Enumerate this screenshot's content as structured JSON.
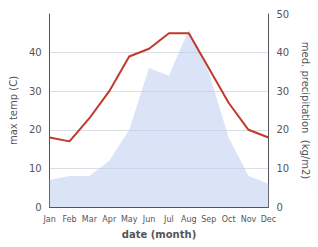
{
  "chart_data": {
    "type": "line",
    "xlabel": "date (month)",
    "ylabel": "max temp (C)",
    "y2label": "med. precipitation  (kg/m2)",
    "categories": [
      "Jan",
      "Feb",
      "Mar",
      "Apr",
      "May",
      "Jun",
      "Jul",
      "Aug",
      "Sep",
      "Oct",
      "Nov",
      "Dec"
    ],
    "series": [
      {
        "type": "area",
        "color": "#b8c8ee",
        "axis": "y2",
        "values": [
          7,
          8,
          8,
          12,
          20,
          36,
          34,
          46,
          35,
          18,
          8,
          6
        ]
      },
      {
        "type": "line",
        "color": "#c0392b",
        "values": [
          18,
          17,
          23,
          30,
          39,
          41,
          45,
          45,
          36,
          27,
          20,
          18
        ]
      }
    ],
    "ylim": [
      0,
      50
    ],
    "yticks": [
      0,
      10,
      20,
      30,
      40
    ],
    "y2lim": [
      0,
      50
    ],
    "y2ticks": [
      0,
      10,
      20,
      30,
      40,
      50
    ],
    "grid": true
  }
}
